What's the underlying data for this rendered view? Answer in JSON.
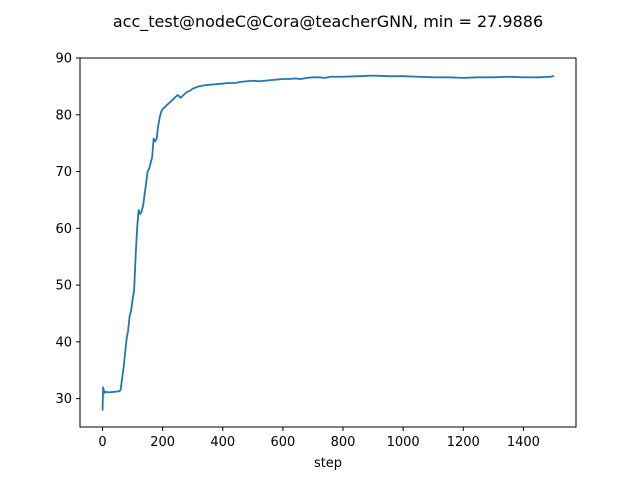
{
  "chart_data": {
    "type": "line",
    "title": "acc_test@nodeC@Cora@teacherGNN, min = 27.9886",
    "xlabel": "step",
    "ylabel": "",
    "xlim": [
      -75,
      1575
    ],
    "ylim": [
      25,
      90
    ],
    "xticks": [
      0,
      200,
      400,
      600,
      800,
      1000,
      1200,
      1400
    ],
    "yticks": [
      30,
      40,
      50,
      60,
      70,
      80,
      90
    ],
    "grid": false,
    "line_color": "#1f77b4",
    "series": [
      {
        "x": [
          0,
          2,
          4,
          6,
          10,
          20,
          40,
          55,
          60,
          65,
          70,
          75,
          80,
          85,
          90,
          95,
          100,
          105,
          110,
          115,
          120,
          125,
          130,
          135,
          140,
          145,
          150,
          155,
          160,
          165,
          170,
          175,
          180,
          185,
          190,
          195,
          200,
          210,
          220,
          230,
          240,
          250,
          260,
          270,
          280,
          290,
          300,
          320,
          340,
          360,
          380,
          400,
          420,
          440,
          460,
          480,
          500,
          520,
          540,
          560,
          580,
          600,
          620,
          640,
          660,
          680,
          700,
          720,
          740,
          760,
          780,
          800,
          850,
          900,
          950,
          1000,
          1050,
          1100,
          1150,
          1200,
          1250,
          1300,
          1350,
          1400,
          1450,
          1490,
          1500
        ],
        "y": [
          27.9886,
          32,
          31.5,
          31,
          31.2,
          31.1,
          31.2,
          31.3,
          31.5,
          33.5,
          35.5,
          38,
          40.5,
          42,
          44.5,
          45.5,
          47.5,
          49,
          55,
          60,
          63.2,
          62.5,
          63,
          64,
          66,
          68,
          70,
          70.5,
          71.5,
          72.5,
          75.8,
          75.3,
          75.8,
          78,
          79.5,
          80.5,
          81,
          81.5,
          82,
          82.5,
          83,
          83.5,
          83,
          83.5,
          84,
          84.2,
          84.6,
          85,
          85.2,
          85.3,
          85.4,
          85.5,
          85.6,
          85.6,
          85.8,
          85.9,
          86,
          85.9,
          86,
          86.1,
          86.2,
          86.3,
          86.3,
          86.4,
          86.3,
          86.5,
          86.6,
          86.6,
          86.5,
          86.7,
          86.7,
          86.7,
          86.8,
          86.9,
          86.8,
          86.8,
          86.7,
          86.6,
          86.6,
          86.5,
          86.6,
          86.6,
          86.7,
          86.6,
          86.6,
          86.7,
          86.8
        ]
      }
    ]
  }
}
